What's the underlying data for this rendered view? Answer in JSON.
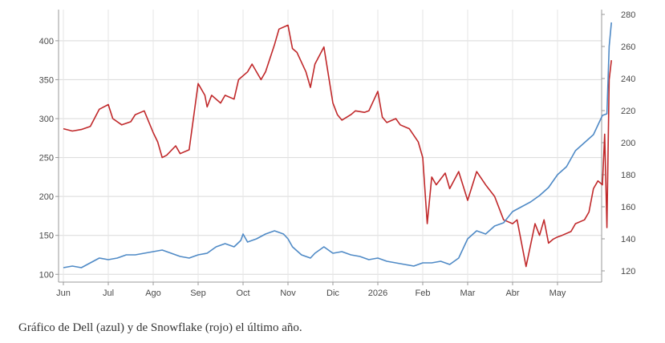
{
  "caption": "Gráfico de Dell (azul) y de Snowflake (rojo) el último año.",
  "chart_data": {
    "type": "line",
    "title": "",
    "xlabel": "",
    "ylabel": "",
    "grid": true,
    "legend": "none",
    "x_tick_labels": [
      "Jun",
      "Jul",
      "Ago",
      "Sep",
      "Oct",
      "Nov",
      "Dic",
      "2026",
      "Feb",
      "Mar",
      "Abr",
      "May"
    ],
    "x_range": [
      0,
      12.2
    ],
    "y_left": {
      "ticks": [
        100,
        150,
        200,
        250,
        300,
        350,
        400
      ],
      "range": [
        90,
        440
      ],
      "series": "Snowflake"
    },
    "y_right": {
      "ticks": [
        120,
        140,
        160,
        180,
        200,
        220,
        240,
        260,
        280
      ],
      "range": [
        113,
        283
      ],
      "series": "Dell"
    },
    "series": [
      {
        "color": "#c0282a",
        "axis": "left",
        "x": [
          0,
          0.2,
          0.4,
          0.6,
          0.8,
          1.0,
          1.1,
          1.3,
          1.5,
          1.6,
          1.8,
          2.0,
          2.1,
          2.2,
          2.3,
          2.5,
          2.6,
          2.8,
          3.0,
          3.15,
          3.2,
          3.3,
          3.5,
          3.6,
          3.8,
          3.9,
          4.1,
          4.2,
          4.4,
          4.5,
          4.7,
          4.8,
          5.0,
          5.1,
          5.2,
          5.4,
          5.5,
          5.6,
          5.8,
          6.0,
          6.1,
          6.2,
          6.4,
          6.5,
          6.7,
          6.8,
          7.0,
          7.1,
          7.2,
          7.4,
          7.5,
          7.7,
          7.9,
          8.0,
          8.1,
          8.2,
          8.3,
          8.5,
          8.6,
          8.8,
          9.0,
          9.2,
          9.4,
          9.6,
          9.8,
          10.0,
          10.1,
          10.3,
          10.5,
          10.6,
          10.7,
          10.8,
          10.9,
          11.0,
          11.1,
          11.3,
          11.4,
          11.6,
          11.7,
          11.8,
          11.9,
          12.0,
          12.05,
          12.1,
          12.15,
          12.2
        ],
        "y": [
          287,
          284,
          286,
          290,
          312,
          318,
          300,
          292,
          296,
          305,
          310,
          282,
          270,
          250,
          253,
          265,
          255,
          260,
          345,
          330,
          315,
          330,
          320,
          330,
          325,
          350,
          360,
          370,
          350,
          360,
          395,
          415,
          420,
          390,
          385,
          360,
          340,
          370,
          392,
          320,
          305,
          298,
          305,
          310,
          308,
          310,
          335,
          302,
          295,
          300,
          292,
          287,
          270,
          250,
          165,
          225,
          215,
          230,
          210,
          232,
          195,
          232,
          215,
          200,
          170,
          165,
          170,
          110,
          165,
          150,
          170,
          140,
          145,
          148,
          150,
          155,
          165,
          170,
          180,
          210,
          220,
          215,
          280,
          160,
          350,
          375
        ]
      },
      {
        "color": "#4f8ac6",
        "axis": "right",
        "x": [
          0,
          0.2,
          0.4,
          0.6,
          0.8,
          1.0,
          1.2,
          1.4,
          1.6,
          1.8,
          2.0,
          2.2,
          2.4,
          2.6,
          2.8,
          3.0,
          3.2,
          3.4,
          3.6,
          3.8,
          3.95,
          4.0,
          4.1,
          4.3,
          4.5,
          4.7,
          4.9,
          5.0,
          5.1,
          5.3,
          5.5,
          5.6,
          5.8,
          6.0,
          6.2,
          6.4,
          6.6,
          6.8,
          7.0,
          7.2,
          7.4,
          7.6,
          7.8,
          8.0,
          8.2,
          8.4,
          8.6,
          8.8,
          9.0,
          9.2,
          9.4,
          9.6,
          9.8,
          10.0,
          10.2,
          10.4,
          10.6,
          10.8,
          11.0,
          11.2,
          11.4,
          11.6,
          11.8,
          12.0,
          12.1,
          12.15,
          12.2
        ],
        "y": [
          122,
          123,
          122,
          125,
          128,
          127,
          128,
          130,
          130,
          131,
          132,
          133,
          131,
          129,
          128,
          130,
          131,
          135,
          137,
          135,
          139,
          143,
          138,
          140,
          143,
          145,
          143,
          140,
          135,
          130,
          128,
          131,
          135,
          131,
          132,
          130,
          129,
          127,
          128,
          126,
          125,
          124,
          123,
          125,
          125,
          126,
          124,
          128,
          140,
          145,
          143,
          148,
          150,
          157,
          160,
          163,
          167,
          172,
          180,
          185,
          195,
          200,
          205,
          217,
          218,
          260,
          275
        ]
      }
    ]
  }
}
